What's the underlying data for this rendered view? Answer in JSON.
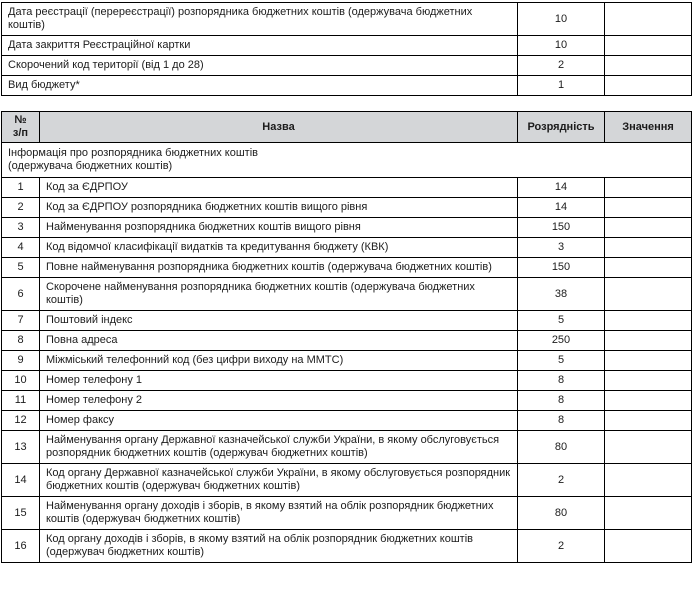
{
  "colors": {
    "header_bg": "#d4d6d8",
    "border": "#000000",
    "text": "#1c1c1c",
    "page_bg": "#ffffff"
  },
  "top_table": {
    "rows": [
      {
        "label": "Дата реєстрації (перереєстрації) розпорядника бюджетних коштів (одержувача бюджетних коштів)",
        "digits": "10",
        "value": ""
      },
      {
        "label": "Дата закриття Реєстраційної картки",
        "digits": "10",
        "value": ""
      },
      {
        "label": "Скорочений код території (від 1 до 28)",
        "digits": "2",
        "value": ""
      },
      {
        "label": "Вид бюджету*",
        "digits": "1",
        "value": ""
      }
    ]
  },
  "main_table": {
    "headers": {
      "num": "№\nз/п",
      "name": "Назва",
      "digits": "Розрядність",
      "value": "Значення"
    },
    "section_title": "Інформація про розпорядника бюджетних коштів\n(одержувача бюджетних коштів)",
    "rows": [
      {
        "num": "1",
        "name": "Код за ЄДРПОУ",
        "digits": "14",
        "value": ""
      },
      {
        "num": "2",
        "name": "Код за ЄДРПОУ розпорядника бюджетних коштів вищого рівня",
        "digits": "14",
        "value": ""
      },
      {
        "num": "3",
        "name": "Найменування розпорядника бюджетних коштів вищого рівня",
        "digits": "150",
        "value": ""
      },
      {
        "num": "4",
        "name": "Код відомчої класифікації видатків та кредитування бюджету (КВК)",
        "digits": "3",
        "value": ""
      },
      {
        "num": "5",
        "name": "Повне найменування розпорядника бюджетних коштів (одержувача бюджетних коштів)",
        "digits": "150",
        "value": ""
      },
      {
        "num": "6",
        "name": "Скорочене найменування розпорядника бюджетних коштів (одержувача бюджетних коштів)",
        "digits": "38",
        "value": ""
      },
      {
        "num": "7",
        "name": "Поштовий індекс",
        "digits": "5",
        "value": ""
      },
      {
        "num": "8",
        "name": "Повна адреса",
        "digits": "250",
        "value": ""
      },
      {
        "num": "9",
        "name": "Міжміський телефонний код (без цифри виходу на ММТС)",
        "digits": "5",
        "value": ""
      },
      {
        "num": "10",
        "name": "Номер телефону 1",
        "digits": "8",
        "value": ""
      },
      {
        "num": "11",
        "name": "Номер телефону 2",
        "digits": "8",
        "value": ""
      },
      {
        "num": "12",
        "name": "Номер факсу",
        "digits": "8",
        "value": ""
      },
      {
        "num": "13",
        "name": "Найменування органу Державної казначейської служби України, в якому обслуговується розпорядник бюджетних коштів (одержувач бюджетних коштів)",
        "digits": "80",
        "value": ""
      },
      {
        "num": "14",
        "name": "Код органу Державної казначейської служби України, в якому обслуговується розпорядник бюджетних коштів (одержувач бюджетних коштів)",
        "digits": "2",
        "value": ""
      },
      {
        "num": "15",
        "name": "Найменування органу доходів і зборів, в якому взятий на облік розпорядник бюджетних коштів (одержувач бюджетних коштів)",
        "digits": "80",
        "value": ""
      },
      {
        "num": "16",
        "name": "Код органу доходів і зборів, в якому взятий на облік розпорядник бюджетних коштів (одержувач бюджетних коштів)",
        "digits": "2",
        "value": ""
      }
    ]
  }
}
